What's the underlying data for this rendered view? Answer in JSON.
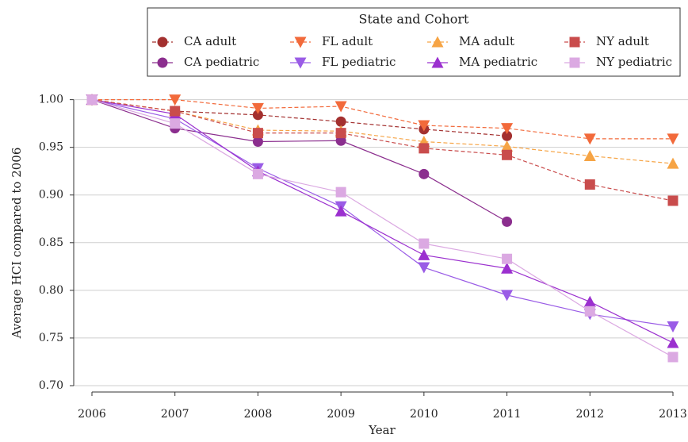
{
  "chart_data": {
    "type": "line",
    "x_label": "Year",
    "y_label": "Average HCI compared to 2006",
    "legend_title": "State and Cohort",
    "legend": "top",
    "grid": true,
    "x": [
      2006,
      2007,
      2008,
      2009,
      2010,
      2011,
      2012,
      2013
    ],
    "xlim": [
      2006,
      2013
    ],
    "xticks": [
      2006,
      2007,
      2008,
      2009,
      2010,
      2011,
      2012,
      2013
    ],
    "ylim": [
      0.7,
      1.013
    ],
    "yticks": [
      {
        "value": 0.7,
        "label": "0.70"
      },
      {
        "value": 0.75,
        "label": "0.75"
      },
      {
        "value": 0.8,
        "label": "0.80"
      },
      {
        "value": 0.85,
        "label": "0.85"
      },
      {
        "value": 0.9,
        "label": "0.90"
      },
      {
        "value": 0.95,
        "label": "0.95"
      },
      {
        "value": 1.0,
        "label": "1.00"
      }
    ],
    "series": [
      {
        "name": "CA adult",
        "color": "#a3302f",
        "linestyle": "dashed",
        "marker": "circle",
        "values": [
          1.0,
          0.988,
          0.984,
          0.977,
          0.969,
          0.962,
          null,
          null
        ]
      },
      {
        "name": "CA pediatric",
        "color": "#8b2e8e",
        "linestyle": "solid",
        "marker": "circle",
        "values": [
          1.0,
          0.97,
          0.956,
          0.957,
          0.922,
          0.872,
          null,
          null
        ]
      },
      {
        "name": "FL adult",
        "color": "#f26a3b",
        "linestyle": "dashed",
        "marker": "triangle-down",
        "values": [
          1.0,
          1.0,
          0.991,
          0.993,
          0.973,
          0.97,
          0.959,
          0.959
        ]
      },
      {
        "name": "FL pediatric",
        "color": "#9a5ce6",
        "linestyle": "solid",
        "marker": "triangle-down",
        "values": [
          1.0,
          0.98,
          0.928,
          0.888,
          0.824,
          0.795,
          0.775,
          0.762
        ]
      },
      {
        "name": "MA adult",
        "color": "#f6a445",
        "linestyle": "dashed",
        "marker": "triangle-up",
        "values": [
          1.0,
          0.988,
          0.968,
          0.967,
          0.956,
          0.951,
          0.941,
          0.933
        ]
      },
      {
        "name": "MA pediatric",
        "color": "#9b30cf",
        "linestyle": "solid",
        "marker": "triangle-up",
        "values": [
          1.0,
          0.985,
          0.925,
          0.883,
          0.837,
          0.823,
          0.788,
          0.745
        ]
      },
      {
        "name": "NY adult",
        "color": "#c94c4c",
        "linestyle": "dashed",
        "marker": "square",
        "values": [
          1.0,
          0.988,
          0.965,
          0.965,
          0.949,
          0.942,
          0.911,
          0.894
        ]
      },
      {
        "name": "NY pediatric",
        "color": "#dba9e2",
        "linestyle": "solid",
        "marker": "square",
        "values": [
          1.0,
          0.975,
          0.922,
          0.903,
          0.849,
          0.833,
          0.778,
          0.73
        ]
      }
    ]
  }
}
